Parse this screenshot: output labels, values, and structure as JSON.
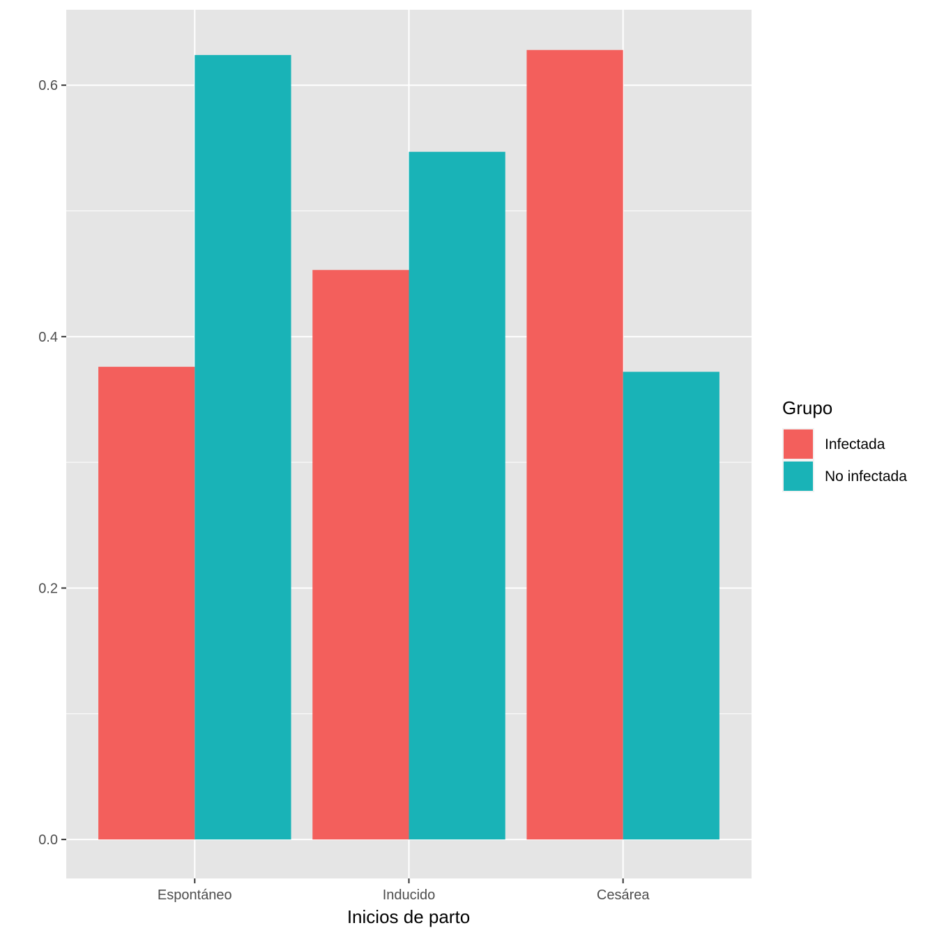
{
  "chart_data": {
    "type": "bar",
    "title": "",
    "xlabel": "Inicios de parto",
    "ylabel": "",
    "categories": [
      "Espontáneo",
      "Inducido",
      "Cesárea"
    ],
    "series": [
      {
        "name": "Infectada",
        "color": "#F35F5C",
        "values": [
          0.376,
          0.453,
          0.628
        ]
      },
      {
        "name": "No infectada",
        "color": "#19B3B7",
        "values": [
          0.624,
          0.547,
          0.372
        ]
      }
    ],
    "ylim": [
      -0.031,
      0.66
    ],
    "yticks": [
      0.0,
      0.2,
      0.4,
      0.6
    ],
    "ytick_labels": [
      "0.0",
      "0.2",
      "0.4",
      "0.6"
    ],
    "yminor": [
      0.1,
      0.3,
      0.5
    ],
    "grid": true,
    "legend": {
      "title": "Grupo",
      "position": "right"
    },
    "colors": {
      "panel": "#E5E5E5",
      "grid": "#FFFFFF",
      "tick": "#333333"
    }
  }
}
